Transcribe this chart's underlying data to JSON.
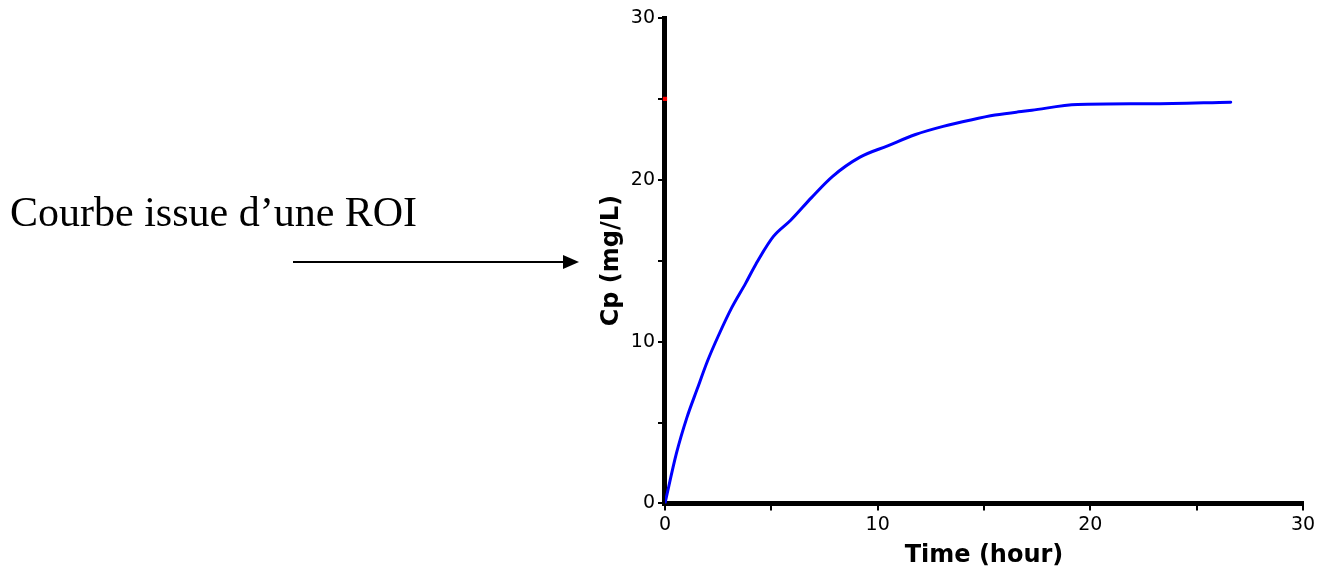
{
  "chart_data": {
    "type": "line",
    "xlabel": "Time (hour)",
    "ylabel": "Cp (mg/L)",
    "xlim": [
      0,
      30
    ],
    "ylim": [
      0,
      30
    ],
    "xticks": [
      0,
      {
        "value": 5,
        "label": null
      },
      10,
      {
        "value": 15,
        "label": null
      },
      20,
      {
        "value": 25,
        "label": null
      },
      30
    ],
    "yticks": [
      0,
      {
        "value": 5,
        "label": null
      },
      10,
      {
        "value": 15,
        "label": null
      },
      20,
      {
        "value": 25,
        "label": null
      },
      30
    ],
    "grid": false,
    "legend": false,
    "marker": "none",
    "line_style": "solid",
    "annotations": [
      "Courbe issue d’une ROI"
    ],
    "series": [
      {
        "color": "#0000ff",
        "x": [
          0,
          0.54,
          1.03,
          1.51,
          2.0,
          2.49,
          3.14,
          3.79,
          4.28,
          5.1,
          5.91,
          6.89,
          7.87,
          9.17,
          10.47,
          11.78,
          13.08,
          14.38,
          15.52,
          17.25,
          19.4,
          22.8,
          26.6
        ],
        "values": [
          0,
          3.1,
          5.3,
          7.05,
          8.8,
          10.3,
          12.1,
          13.6,
          14.8,
          16.5,
          17.5,
          18.9,
          20.2,
          21.4,
          22.1,
          22.8,
          23.3,
          23.7,
          24.0,
          24.3,
          24.65,
          24.7,
          24.8
        ]
      },
      {
        "type": "scatter",
        "color": "#ff0000",
        "x": [
          0
        ],
        "values": [
          25
        ],
        "marker": "square"
      }
    ]
  }
}
